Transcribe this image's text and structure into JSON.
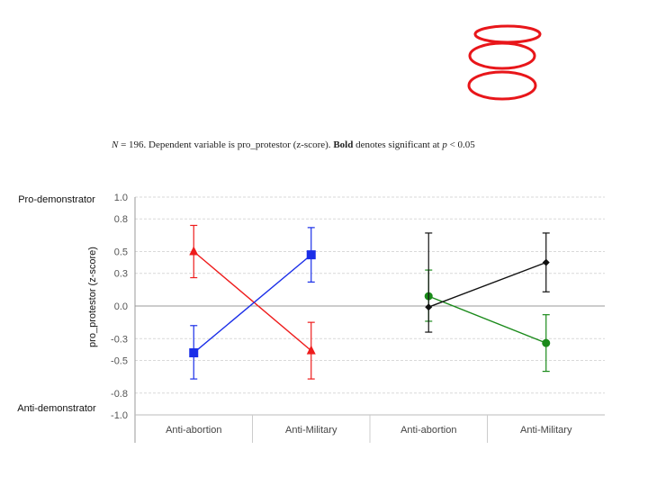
{
  "note": {
    "n_label": "N",
    "n_text": " = 196. Dependent variable is pro_protestor (z-score). ",
    "bold": "Bold",
    "mid": " denotes significant at ",
    "p_label": "p",
    "tail": " < 0.05"
  },
  "labels": {
    "pro": "Pro-demonstrator",
    "anti": "Anti-demonstrator"
  },
  "colors": {
    "red": "#ee1c1c",
    "blue": "#1a2ee8",
    "green": "#1a8a1a",
    "black": "#111111",
    "annotation": "#e8161a"
  },
  "chart_data": {
    "type": "line",
    "title": "",
    "ylabel": "pro_protestor (z-score)",
    "xlabel": "",
    "ylim": [
      -1.0,
      1.0
    ],
    "yticks": [
      1.0,
      0.8,
      0.5,
      0.3,
      0.0,
      -0.3,
      -0.5,
      -0.8,
      -1.0
    ],
    "ytick_labels": [
      "1.0",
      "0.8",
      "0.5",
      "0.3",
      "0.0",
      "-0.3",
      "-0.5",
      "-0.8",
      "-1.0"
    ],
    "categories": [
      "Anti-abortion",
      "Anti-Military",
      "Anti-abortion",
      "Anti-Military"
    ],
    "series": [
      {
        "name": "red",
        "color": "#ee1c1c",
        "marker": "triangle",
        "x": [
          0,
          1
        ],
        "values": [
          0.5,
          -0.41
        ],
        "err_low": [
          0.26,
          -0.67
        ],
        "err_high": [
          0.74,
          -0.15
        ]
      },
      {
        "name": "blue",
        "color": "#1a2ee8",
        "marker": "square",
        "x": [
          0,
          1
        ],
        "values": [
          -0.43,
          0.47
        ],
        "err_low": [
          -0.67,
          0.22
        ],
        "err_high": [
          -0.18,
          0.72
        ]
      },
      {
        "name": "green",
        "color": "#1a8a1a",
        "marker": "circle",
        "x": [
          2,
          3
        ],
        "values": [
          0.09,
          -0.34
        ],
        "err_low": [
          -0.14,
          -0.6
        ],
        "err_high": [
          0.33,
          -0.08
        ]
      },
      {
        "name": "black",
        "color": "#111111",
        "marker": "diamond",
        "x": [
          2,
          3
        ],
        "values": [
          -0.01,
          0.4
        ],
        "err_low": [
          -0.24,
          0.13
        ],
        "err_high": [
          0.67,
          0.67
        ]
      }
    ],
    "grid": true
  }
}
